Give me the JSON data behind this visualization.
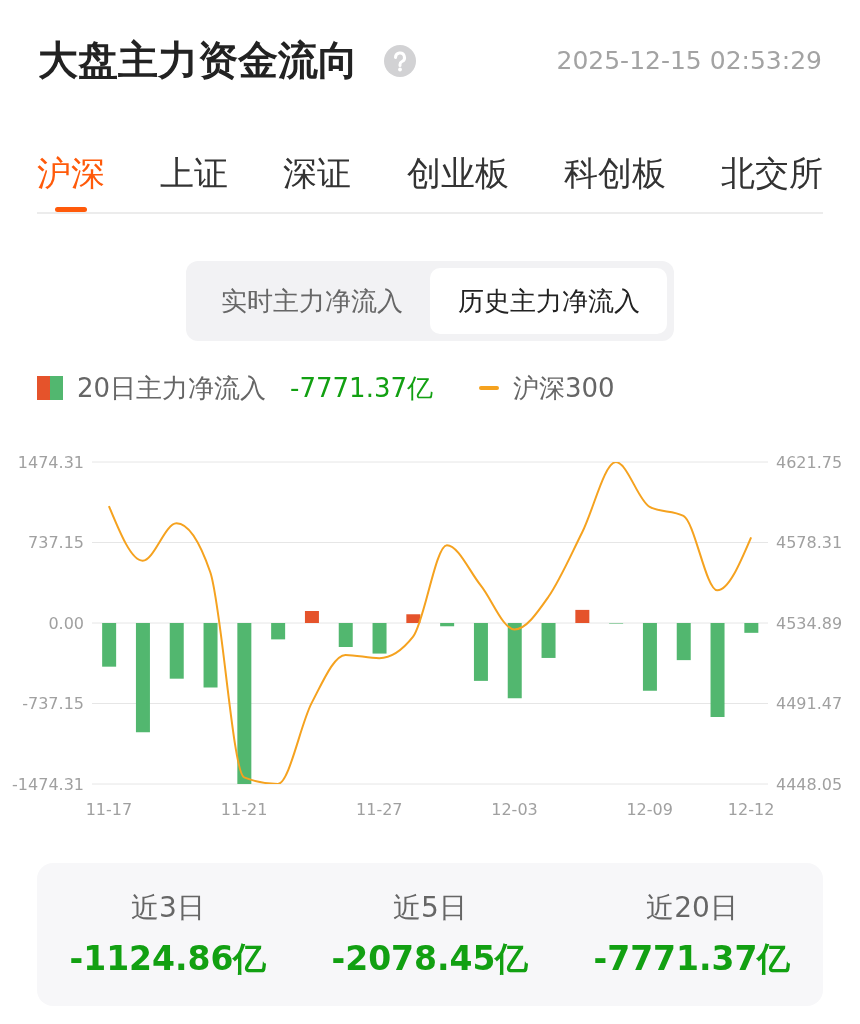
{
  "chart_data": {
    "type": "bar",
    "title": "大盘主力资金流向",
    "categories": [
      "11-17",
      null,
      null,
      null,
      "11-21",
      null,
      null,
      null,
      "11-27",
      null,
      null,
      null,
      "12-03",
      null,
      null,
      null,
      "12-09",
      null,
      null,
      "12-12"
    ],
    "series": [
      {
        "name": "20日主力净流入",
        "colors": [
          "#52b76f",
          "#52b76f",
          "#52b76f",
          "#52b76f",
          "#52b76f",
          "#52b76f",
          "#e5532b",
          "#52b76f",
          "#52b76f",
          "#e5532b",
          "#52b76f",
          "#52b76f",
          "#52b76f",
          "#52b76f",
          "#e5532b",
          "#52b76f",
          "#52b76f",
          "#52b76f",
          "#52b76f",
          "#52b76f"
        ],
        "values": [
          -400,
          -1000,
          -510,
          -590,
          -1474.31,
          -150,
          110,
          -220,
          -280,
          80,
          -30,
          -530,
          -690,
          -320,
          120,
          -5,
          -620,
          -340,
          -860,
          -90
        ]
      },
      {
        "name": "沪深300",
        "type": "line",
        "axis": "y2",
        "color": "#f5a21f",
        "values": [
          4598.0,
          4568.5,
          4588.7,
          4562.3,
          4451.6,
          4448.1,
          4491.8,
          4517.7,
          4515.9,
          4527.5,
          4576.9,
          4555.2,
          4531.4,
          4548.9,
          4583.7,
          4621.7,
          4597.5,
          4592.7,
          4552.5,
          4581.1
        ]
      }
    ],
    "ylim": [
      -1474.31,
      1474.31
    ],
    "yticks": [
      -1474.31,
      -737.15,
      {
        "value": 0,
        "label": "0.00"
      },
      737.15,
      1474.31
    ],
    "y2lim": [
      4448.05,
      4621.75
    ],
    "y2ticks": [
      4448.05,
      4491.47,
      4534.89,
      4578.31,
      4621.75
    ],
    "grid": "y",
    "legend": "top left",
    "marker": "none",
    "annotations": [
      "2025-12-15 02:53:29",
      "沪深",
      "上证",
      "深证",
      "创业板",
      "科创板",
      "北交所",
      "实时主力净流入",
      "历史主力净流入",
      "-7771.37亿",
      "近3日",
      "-1124.86亿",
      "近5日",
      "-2078.45亿",
      "近20日",
      "-7771.37亿"
    ]
  }
}
